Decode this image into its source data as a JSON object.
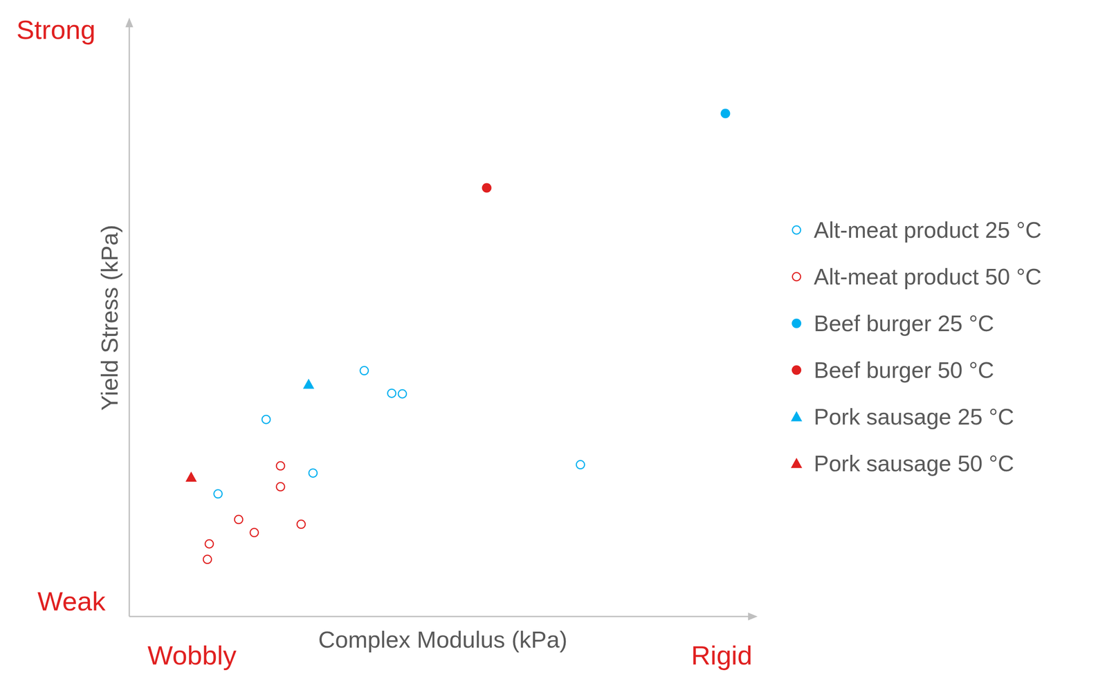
{
  "chart_data": {
    "type": "scatter",
    "x_label": "Complex Modulus (kPa)",
    "y_label": "Yield Stress (kPa)",
    "annotations": {
      "y_high": "Strong",
      "y_low": "Weak",
      "x_low": "Wobbly",
      "x_high": "Rigid"
    },
    "xlim": [
      0,
      100
    ],
    "ylim": [
      0,
      100
    ],
    "xticks": [],
    "yticks": [],
    "tick_labels": false,
    "grid": false,
    "legend": "right",
    "series": [
      {
        "name": "Alt-meat product 25 °C",
        "color": "#00b0f0",
        "marker": "circle_open",
        "x": [
          14.2,
          21.9,
          29.4,
          37.6,
          42.0,
          43.7,
          72.2
        ],
        "values": [
          20.6,
          33.1,
          24.1,
          41.3,
          37.5,
          37.4,
          25.5
        ]
      },
      {
        "name": "Alt-meat product 50 °C",
        "color": "#e02020",
        "marker": "circle_open",
        "x": [
          12.5,
          12.8,
          17.5,
          20.0,
          24.2,
          24.2,
          27.5
        ],
        "values": [
          9.6,
          12.2,
          16.3,
          14.1,
          25.3,
          21.8,
          15.5
        ]
      },
      {
        "name": "Beef burger 25 °C",
        "color": "#00b0f0",
        "marker": "circle",
        "x": [
          95.4
        ],
        "values": [
          84.5
        ]
      },
      {
        "name": "Beef burger 50 °C",
        "color": "#e02020",
        "marker": "circle",
        "x": [
          57.2
        ],
        "values": [
          72.0
        ]
      },
      {
        "name": "Pork sausage 25 °C",
        "color": "#00b0f0",
        "marker": "triangle",
        "x": [
          28.7
        ],
        "values": [
          39.0
        ]
      },
      {
        "name": "Pork sausage 50 °C",
        "color": "#e02020",
        "marker": "triangle",
        "x": [
          9.9
        ],
        "values": [
          23.4
        ]
      }
    ]
  }
}
